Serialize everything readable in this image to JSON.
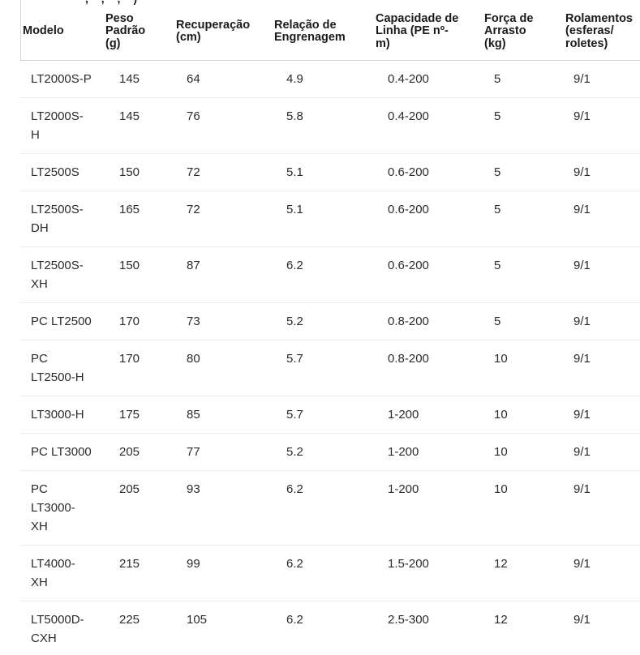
{
  "page": {
    "background": "#ffffff",
    "top_fragment": ", , ,  )"
  },
  "colors": {
    "header_text": "#1a1a1a",
    "body_text": "#2b2b2b",
    "header_rule": "#d4d4d4",
    "row_rule": "#ececec"
  },
  "table": {
    "fields": [
      "modelo",
      "peso",
      "recuperacao",
      "relacao",
      "capacidade",
      "forca",
      "rolamentos"
    ],
    "columns": [
      {
        "label": "Modelo"
      },
      {
        "label": "Peso\nPadrão\n(g)"
      },
      {
        "label": "Recuperação\n(cm)"
      },
      {
        "label": "Relação de\nEngrenagem"
      },
      {
        "label": "Capacidade de\nLinha (PE nº-\nm)"
      },
      {
        "label": "Força de\nArrasto\n(kg)"
      },
      {
        "label": "Rolamentos\n(esferas/\nroletes)"
      }
    ],
    "rows": [
      {
        "modelo": "LT2000S-P",
        "peso": "145",
        "recuperacao": "64",
        "relacao": "4.9",
        "capacidade": "0.4-200",
        "forca": "5",
        "rolamentos": "9/1"
      },
      {
        "modelo": "LT2000S-\nH",
        "peso": "145",
        "recuperacao": "76",
        "relacao": "5.8",
        "capacidade": "0.4-200",
        "forca": "5",
        "rolamentos": "9/1"
      },
      {
        "modelo": "LT2500S",
        "peso": "150",
        "recuperacao": "72",
        "relacao": "5.1",
        "capacidade": "0.6-200",
        "forca": "5",
        "rolamentos": "9/1"
      },
      {
        "modelo": "LT2500S-\nDH",
        "peso": "165",
        "recuperacao": "72",
        "relacao": "5.1",
        "capacidade": "0.6-200",
        "forca": "5",
        "rolamentos": "9/1"
      },
      {
        "modelo": "LT2500S-\nXH",
        "peso": "150",
        "recuperacao": "87",
        "relacao": "6.2",
        "capacidade": "0.6-200",
        "forca": "5",
        "rolamentos": "9/1"
      },
      {
        "modelo": "PC LT2500",
        "peso": "170",
        "recuperacao": "73",
        "relacao": "5.2",
        "capacidade": "0.8-200",
        "forca": "5",
        "rolamentos": "9/1"
      },
      {
        "modelo": "PC\nLT2500-H",
        "peso": "170",
        "recuperacao": "80",
        "relacao": "5.7",
        "capacidade": "0.8-200",
        "forca": "10",
        "rolamentos": "9/1"
      },
      {
        "modelo": "LT3000-H",
        "peso": "175",
        "recuperacao": "85",
        "relacao": "5.7",
        "capacidade": "1-200",
        "forca": "10",
        "rolamentos": "9/1"
      },
      {
        "modelo": "PC LT3000",
        "peso": "205",
        "recuperacao": "77",
        "relacao": "5.2",
        "capacidade": "1-200",
        "forca": "10",
        "rolamentos": "9/1"
      },
      {
        "modelo": "PC\nLT3000-\nXH",
        "peso": "205",
        "recuperacao": "93",
        "relacao": "6.2",
        "capacidade": "1-200",
        "forca": "10",
        "rolamentos": "9/1"
      },
      {
        "modelo": "LT4000-\nXH",
        "peso": "215",
        "recuperacao": "99",
        "relacao": "6.2",
        "capacidade": "1.5-200",
        "forca": "12",
        "rolamentos": "9/1"
      },
      {
        "modelo": "LT5000D-\nCXH",
        "peso": "225",
        "recuperacao": "105",
        "relacao": "6.2",
        "capacidade": "2.5-300",
        "forca": "12",
        "rolamentos": "9/1"
      }
    ]
  }
}
